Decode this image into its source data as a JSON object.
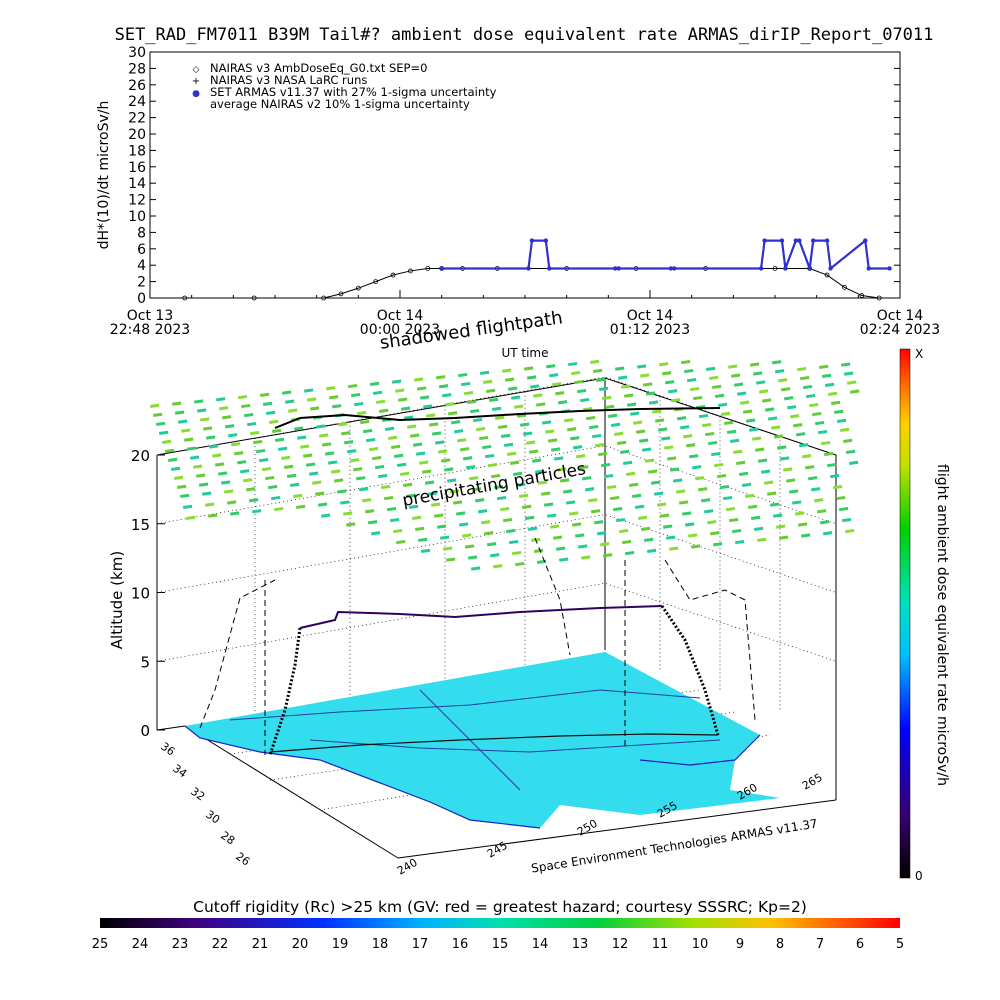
{
  "title": "SET_RAD_FM7011  B39M Tail#? ambient dose equivalent rate ARMAS_dirIP_Report_07011",
  "top_chart": {
    "ylabel": "dH*(10)/dt microSv/h",
    "xlabel": "UT time",
    "yticks": [
      "0",
      "2",
      "4",
      "6",
      "8",
      "10",
      "12",
      "14",
      "16",
      "18",
      "20",
      "22",
      "24",
      "26",
      "28",
      "30"
    ],
    "xticks": [
      {
        "line1": "Oct 13",
        "line2": "22:48 2023"
      },
      {
        "line1": "Oct 14",
        "line2": "00:00 2023"
      },
      {
        "line1": "Oct 14",
        "line2": "01:12 2023"
      },
      {
        "line1": "Oct 14",
        "line2": "02:24 2023"
      }
    ],
    "legend": [
      {
        "symbol": "◇",
        "text": "NAIRAS v3 AmbDoseEq_G0.txt SEP=0"
      },
      {
        "symbol": "+",
        "text": "NAIRAS v3 NASA LaRC runs"
      },
      {
        "symbol": "●",
        "text": "SET ARMAS v11.37 with 27% 1-sigma uncertainty"
      },
      {
        "symbol": "",
        "text": "average NAIRAS v2 10% 1-sigma uncertainty"
      }
    ],
    "annotation": "shadowed flightpath"
  },
  "chart_data": [
    {
      "type": "line",
      "x_unit": "minutes from Oct 13 22:48 UT",
      "xlim": [
        0,
        216
      ],
      "ylim": [
        0,
        30
      ],
      "series": [
        {
          "name": "NAIRAS v3 AmbDoseEq_G0.txt SEP=0",
          "color": "#000000",
          "x": [
            10,
            30,
            50,
            55,
            60,
            65,
            70,
            75,
            80,
            84,
            90,
            100,
            120,
            140,
            160,
            180,
            190,
            195,
            200,
            205,
            210
          ],
          "y": [
            0,
            0,
            0,
            0.5,
            1.2,
            2.0,
            2.8,
            3.3,
            3.6,
            3.6,
            3.6,
            3.6,
            3.6,
            3.6,
            3.6,
            3.6,
            3.6,
            2.8,
            1.3,
            0.3,
            0
          ]
        },
        {
          "name": "SET ARMAS v11.37 with 27% 1-sigma uncertainty",
          "color": "#3030d0",
          "x": [
            84,
            109,
            110,
            114,
            115,
            134,
            135,
            150,
            151,
            176,
            177,
            182,
            183,
            186,
            187,
            190,
            191,
            195,
            196,
            206,
            207,
            213
          ],
          "y": [
            3.6,
            3.6,
            7,
            7,
            3.6,
            3.6,
            3.6,
            3.6,
            3.6,
            3.6,
            7,
            7,
            3.6,
            7,
            7,
            3.6,
            7,
            7,
            3.6,
            7,
            3.6,
            3.6
          ]
        }
      ]
    },
    {
      "type": "3d-flightpath",
      "zlabel": "Altitude (km)",
      "zticks": [
        "0",
        "5",
        "10",
        "15",
        "20"
      ],
      "lat_ticks": [
        "36",
        "34",
        "32",
        "30",
        "28",
        "26"
      ],
      "lon_ticks": [
        "240",
        "245",
        "250",
        "255",
        "260",
        "265"
      ],
      "annotation": "precipitating particles",
      "colorbar": {
        "label": "flight ambient dose equivalent rate microSv/h",
        "min": "0",
        "max": "X"
      }
    }
  ],
  "credit": "Space Environment Technologies ARMAS v11.37",
  "cutoff_bar": {
    "title": "Cutoff rigidity (Rc) >25 km (GV: red = greatest hazard; courtesy SSSRC; Kp=2)",
    "ticks": [
      "25",
      "24",
      "23",
      "22",
      "21",
      "20",
      "19",
      "18",
      "17",
      "16",
      "15",
      "14",
      "13",
      "12",
      "11",
      "10",
      "9",
      "8",
      "7",
      "6",
      "5"
    ]
  },
  "colors": {
    "armas": "#3030d0",
    "particles": "#66cc33",
    "ground": "#33ddee",
    "flight": "#300060"
  }
}
